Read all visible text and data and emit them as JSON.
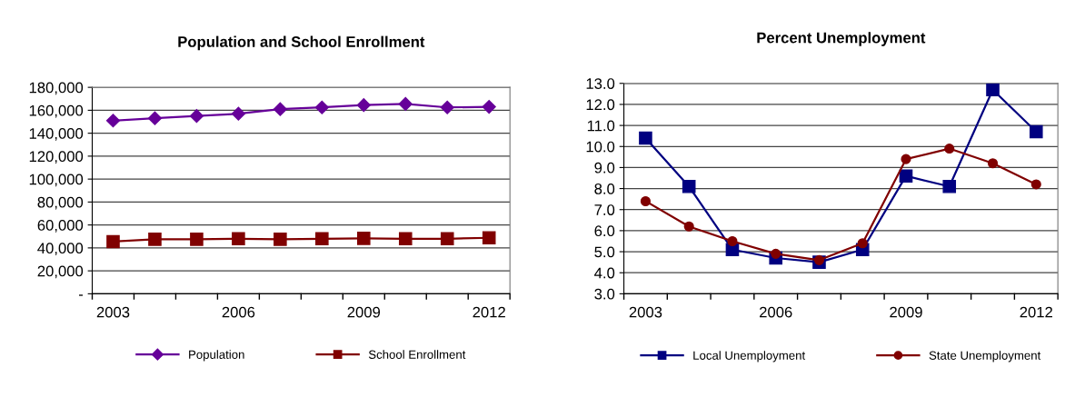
{
  "chart_data": [
    {
      "type": "line",
      "title": "Population and School Enrollment",
      "categories": [
        "2003",
        null,
        null,
        "2006",
        null,
        null,
        "2009",
        null,
        null,
        "2012"
      ],
      "series": [
        {
          "name": "Population",
          "color": "#660099",
          "marker": "diamond",
          "values": [
            151000,
            153000,
            155000,
            157000,
            161000,
            162500,
            164500,
            165500,
            162500,
            163000
          ]
        },
        {
          "name": "School Enrollment",
          "color": "#800000",
          "marker": "square",
          "values": [
            45500,
            47500,
            47500,
            48000,
            47500,
            48000,
            48300,
            48000,
            48000,
            48800
          ]
        }
      ],
      "ylim": [
        0,
        180000
      ],
      "yticks": [
        {
          "value": 0,
          "label": "-"
        },
        {
          "value": 20000,
          "label": "20,000"
        },
        {
          "value": 40000,
          "label": "40,000"
        },
        {
          "value": 60000,
          "label": "60,000"
        },
        {
          "value": 80000,
          "label": "80,000"
        },
        {
          "value": 100000,
          "label": "100,000"
        },
        {
          "value": 120000,
          "label": "120,000"
        },
        {
          "value": 140000,
          "label": "140,000"
        },
        {
          "value": 160000,
          "label": "160,000"
        },
        {
          "value": 180000,
          "label": "180,000"
        }
      ],
      "grid": "y",
      "legend": "bottom",
      "line_style": "solid"
    },
    {
      "type": "line",
      "title": "Percent Unemployment",
      "categories": [
        "2003",
        null,
        null,
        "2006",
        null,
        null,
        "2009",
        null,
        null,
        "2012"
      ],
      "series": [
        {
          "name": "Local Unemployment",
          "color": "#000080",
          "marker": "square",
          "values": [
            10.4,
            8.1,
            5.1,
            4.7,
            4.5,
            5.1,
            8.6,
            8.1,
            12.7,
            10.7
          ]
        },
        {
          "name": "State Unemployment",
          "color": "#800000",
          "marker": "circle",
          "values": [
            7.4,
            6.2,
            5.5,
            4.9,
            4.6,
            5.4,
            9.4,
            9.9,
            9.2,
            8.2
          ]
        }
      ],
      "ylim": [
        3,
        13
      ],
      "yticks": [
        {
          "value": 3,
          "label": "3.0"
        },
        {
          "value": 4,
          "label": "4.0"
        },
        {
          "value": 5,
          "label": "5.0"
        },
        {
          "value": 6,
          "label": "6.0"
        },
        {
          "value": 7,
          "label": "7.0"
        },
        {
          "value": 8,
          "label": "8.0"
        },
        {
          "value": 9,
          "label": "9.0"
        },
        {
          "value": 10,
          "label": "10.0"
        },
        {
          "value": 11,
          "label": "11.0"
        },
        {
          "value": 12,
          "label": "12.0"
        },
        {
          "value": 13,
          "label": "13.0"
        }
      ],
      "grid": "y",
      "legend": "bottom",
      "line_style": "solid"
    }
  ]
}
